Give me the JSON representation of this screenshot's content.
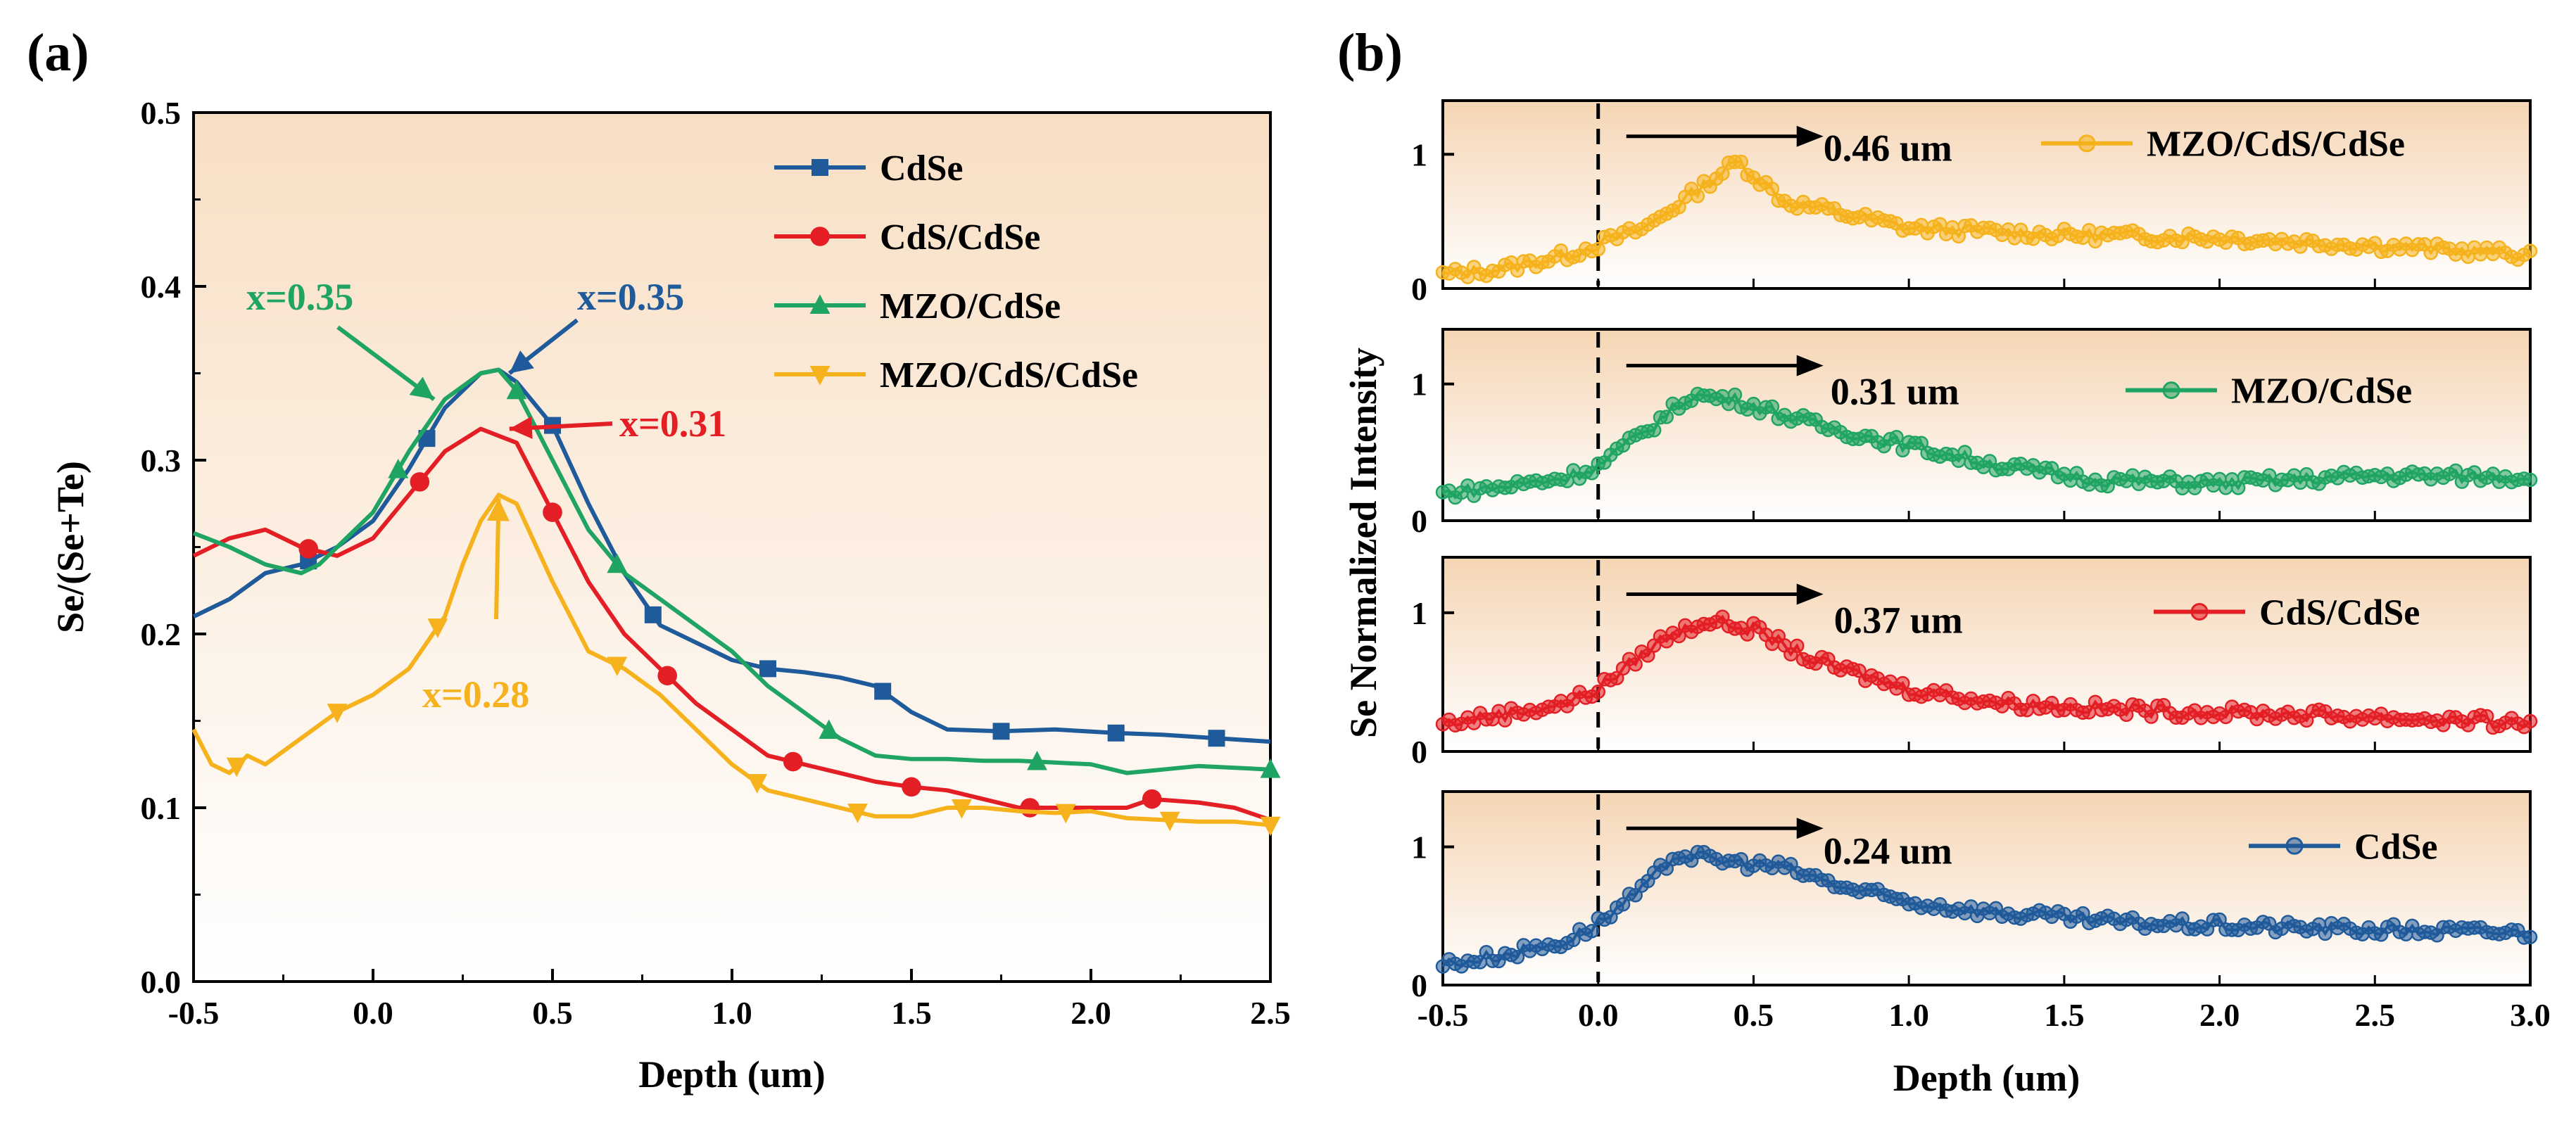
{
  "figure": {
    "panel_a_label": "(a)",
    "panel_b_label": "(b)"
  },
  "colors": {
    "CdSe": "#1f5a9a",
    "CdS/CdSe": "#e31e24",
    "MZO/CdSe": "#1fa463",
    "MZO/CdS/CdSe": "#f5b21c",
    "arrow": "#000000"
  },
  "chart_data": [
    {
      "type": "line",
      "panel": "(a)",
      "title": "",
      "xlabel": "Depth (um)",
      "ylabel": "Se/(Se+Te)",
      "xlim": [
        -0.5,
        2.5
      ],
      "ylim": [
        0.0,
        0.5
      ],
      "xticks": [
        "-0.5",
        "0.0",
        "0.5",
        "1.0",
        "1.5",
        "2.0",
        "2.5"
      ],
      "yticks": [
        "0.0",
        "0.1",
        "0.2",
        "0.3",
        "0.4",
        "0.5"
      ],
      "legend_position": "top-right",
      "series": [
        {
          "name": "CdSe",
          "marker": "square",
          "x": [
            -0.5,
            -0.4,
            -0.3,
            -0.2,
            -0.1,
            0.0,
            0.1,
            0.2,
            0.3,
            0.35,
            0.4,
            0.5,
            0.6,
            0.7,
            0.8,
            0.9,
            1.0,
            1.1,
            1.2,
            1.3,
            1.4,
            1.5,
            1.6,
            1.75,
            1.9,
            2.07,
            2.2,
            2.35,
            2.5
          ],
          "y": [
            0.21,
            0.22,
            0.235,
            0.24,
            0.25,
            0.265,
            0.295,
            0.33,
            0.35,
            0.352,
            0.345,
            0.32,
            0.275,
            0.235,
            0.205,
            0.195,
            0.185,
            0.18,
            0.178,
            0.175,
            0.17,
            0.155,
            0.145,
            0.144,
            0.145,
            0.143,
            0.142,
            0.14,
            0.138
          ],
          "marker_x": [
            -0.18,
            0.15,
            0.5,
            0.78,
            1.1,
            1.42,
            1.75,
            2.07,
            2.35
          ]
        },
        {
          "name": "CdS/CdSe",
          "marker": "circle",
          "x": [
            -0.5,
            -0.4,
            -0.3,
            -0.2,
            -0.1,
            0.0,
            0.1,
            0.2,
            0.3,
            0.4,
            0.5,
            0.6,
            0.7,
            0.8,
            0.9,
            1.0,
            1.1,
            1.2,
            1.3,
            1.4,
            1.5,
            1.6,
            1.7,
            1.8,
            1.9,
            2.0,
            2.1,
            2.17,
            2.3,
            2.4,
            2.5
          ],
          "y": [
            0.245,
            0.255,
            0.26,
            0.25,
            0.245,
            0.255,
            0.28,
            0.305,
            0.318,
            0.31,
            0.27,
            0.23,
            0.2,
            0.18,
            0.16,
            0.145,
            0.13,
            0.125,
            0.12,
            0.115,
            0.112,
            0.11,
            0.105,
            0.1,
            0.1,
            0.1,
            0.1,
            0.105,
            0.103,
            0.1,
            0.093
          ],
          "marker_x": [
            -0.18,
            0.13,
            0.5,
            0.82,
            1.17,
            1.5,
            1.83,
            2.17
          ]
        },
        {
          "name": "MZO/CdSe",
          "marker": "triangle-up",
          "x": [
            -0.5,
            -0.4,
            -0.3,
            -0.2,
            -0.15,
            -0.1,
            0.0,
            0.1,
            0.2,
            0.3,
            0.35,
            0.4,
            0.5,
            0.6,
            0.7,
            0.8,
            0.9,
            1.0,
            1.1,
            1.2,
            1.3,
            1.4,
            1.5,
            1.6,
            1.7,
            1.8,
            1.9,
            2.0,
            2.1,
            2.2,
            2.3,
            2.5
          ],
          "y": [
            0.258,
            0.25,
            0.24,
            0.235,
            0.24,
            0.25,
            0.27,
            0.305,
            0.335,
            0.35,
            0.352,
            0.34,
            0.3,
            0.26,
            0.235,
            0.22,
            0.205,
            0.19,
            0.17,
            0.155,
            0.14,
            0.13,
            0.128,
            0.128,
            0.127,
            0.127,
            0.126,
            0.125,
            0.12,
            0.122,
            0.124,
            0.122
          ],
          "marker_x": [
            0.07,
            0.4,
            0.68,
            1.27,
            1.85,
            2.5
          ]
        },
        {
          "name": "MZO/CdS/CdSe",
          "marker": "triangle-down",
          "x": [
            -0.5,
            -0.45,
            -0.4,
            -0.35,
            -0.3,
            -0.2,
            -0.1,
            0.0,
            0.1,
            0.2,
            0.25,
            0.3,
            0.35,
            0.4,
            0.5,
            0.6,
            0.7,
            0.8,
            0.9,
            1.0,
            1.1,
            1.2,
            1.3,
            1.4,
            1.5,
            1.6,
            1.7,
            1.8,
            1.9,
            2.0,
            2.1,
            2.2,
            2.3,
            2.4,
            2.5
          ],
          "y": [
            0.145,
            0.125,
            0.12,
            0.13,
            0.125,
            0.14,
            0.155,
            0.165,
            0.18,
            0.21,
            0.24,
            0.265,
            0.28,
            0.275,
            0.23,
            0.19,
            0.18,
            0.165,
            0.145,
            0.125,
            0.11,
            0.105,
            0.1,
            0.095,
            0.095,
            0.1,
            0.1,
            0.098,
            0.097,
            0.098,
            0.094,
            0.093,
            0.092,
            0.092,
            0.09
          ],
          "marker_x": [
            -0.38,
            -0.1,
            0.18,
            0.68,
            1.07,
            1.35,
            1.64,
            1.93,
            2.22,
            2.5
          ]
        }
      ],
      "annotations": [
        {
          "text": "x=0.35",
          "series": "MZO/CdSe",
          "target": [
            0.17,
            0.335
          ]
        },
        {
          "text": "x=0.35",
          "series": "CdSe",
          "target": [
            0.38,
            0.35
          ]
        },
        {
          "text": "x=0.31",
          "series": "CdS/CdSe",
          "target": [
            0.38,
            0.318
          ]
        },
        {
          "text": "x=0.28",
          "series": "MZO/CdS/CdSe",
          "target": [
            0.35,
            0.278
          ]
        }
      ]
    },
    {
      "type": "scatter",
      "panel": "(b)",
      "title": "",
      "xlabel": "Depth (um)",
      "ylabel": "Se Normalized Intensity",
      "xlim": [
        -0.5,
        3.0
      ],
      "ylim": [
        0,
        1.4
      ],
      "xticks": [
        "-0.5",
        "0.0",
        "0.5",
        "1.0",
        "1.5",
        "2.0",
        "2.5",
        "3.0"
      ],
      "yticks": [
        "0",
        "1"
      ],
      "reference_line_x": 0.0,
      "subplots": [
        {
          "name": "MZO/CdS/CdSe",
          "shift_label": "0.46 um",
          "shift": 0.46,
          "profile": [
            [
              -0.5,
              0.1
            ],
            [
              -0.3,
              0.15
            ],
            [
              -0.1,
              0.25
            ],
            [
              0.0,
              0.33
            ],
            [
              0.15,
              0.45
            ],
            [
              0.3,
              0.7
            ],
            [
              0.45,
              0.95
            ],
            [
              0.6,
              0.65
            ],
            [
              0.8,
              0.55
            ],
            [
              1.0,
              0.45
            ],
            [
              1.5,
              0.4
            ],
            [
              2.0,
              0.38
            ],
            [
              2.5,
              0.32
            ],
            [
              3.0,
              0.25
            ]
          ]
        },
        {
          "name": "MZO/CdSe",
          "shift_label": "0.31 um",
          "shift": 0.31,
          "profile": [
            [
              -0.5,
              0.2
            ],
            [
              -0.3,
              0.25
            ],
            [
              -0.1,
              0.32
            ],
            [
              0.0,
              0.4
            ],
            [
              0.15,
              0.65
            ],
            [
              0.3,
              0.92
            ],
            [
              0.45,
              0.88
            ],
            [
              0.7,
              0.7
            ],
            [
              1.0,
              0.55
            ],
            [
              1.3,
              0.4
            ],
            [
              1.6,
              0.3
            ],
            [
              2.0,
              0.27
            ],
            [
              2.5,
              0.33
            ],
            [
              3.0,
              0.32
            ]
          ]
        },
        {
          "name": "CdS/CdSe",
          "shift_label": "0.37 um",
          "shift": 0.37,
          "profile": [
            [
              -0.5,
              0.2
            ],
            [
              -0.3,
              0.27
            ],
            [
              -0.1,
              0.35
            ],
            [
              0.0,
              0.45
            ],
            [
              0.2,
              0.8
            ],
            [
              0.35,
              0.95
            ],
            [
              0.5,
              0.88
            ],
            [
              0.7,
              0.65
            ],
            [
              1.0,
              0.45
            ],
            [
              1.3,
              0.35
            ],
            [
              1.7,
              0.3
            ],
            [
              2.0,
              0.28
            ],
            [
              2.5,
              0.25
            ],
            [
              3.0,
              0.2
            ]
          ]
        },
        {
          "name": "CdSe",
          "shift_label": "0.24 um",
          "shift": 0.24,
          "profile": [
            [
              -0.5,
              0.15
            ],
            [
              -0.3,
              0.22
            ],
            [
              -0.1,
              0.32
            ],
            [
              0.0,
              0.45
            ],
            [
              0.15,
              0.7
            ],
            [
              0.25,
              0.95
            ],
            [
              0.4,
              0.9
            ],
            [
              0.6,
              0.85
            ],
            [
              0.8,
              0.7
            ],
            [
              1.0,
              0.6
            ],
            [
              1.3,
              0.52
            ],
            [
              1.7,
              0.45
            ],
            [
              2.0,
              0.43
            ],
            [
              2.5,
              0.4
            ],
            [
              3.0,
              0.38
            ]
          ]
        }
      ]
    }
  ]
}
